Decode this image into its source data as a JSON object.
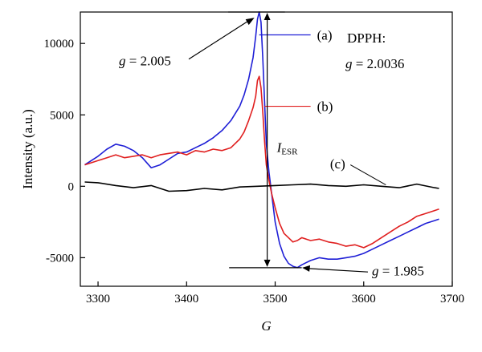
{
  "chart_data": {
    "type": "line",
    "xlabel": "G",
    "ylabel": "Intensity (a.u.)",
    "xlim": [
      3280,
      3700
    ],
    "ylim": [
      -7000,
      12200
    ],
    "xticks": [
      3300,
      3400,
      3500,
      3600,
      3700
    ],
    "yticks": [
      -5000,
      0,
      5000,
      10000
    ],
    "grid": false,
    "series": [
      {
        "name": "(a)",
        "color": "#1f1fd6",
        "x": [
          3285,
          3300,
          3310,
          3320,
          3330,
          3340,
          3350,
          3360,
          3370,
          3380,
          3390,
          3400,
          3410,
          3420,
          3430,
          3440,
          3450,
          3460,
          3465,
          3470,
          3475,
          3478,
          3480,
          3482,
          3484,
          3486,
          3488,
          3490,
          3493,
          3496,
          3500,
          3505,
          3510,
          3515,
          3520,
          3525,
          3530,
          3540,
          3550,
          3560,
          3570,
          3580,
          3590,
          3600,
          3610,
          3620,
          3630,
          3640,
          3650,
          3660,
          3670,
          3680,
          3685
        ],
        "y": [
          1500,
          2100,
          2600,
          2950,
          2800,
          2500,
          2000,
          1300,
          1500,
          1900,
          2300,
          2400,
          2700,
          3000,
          3400,
          3900,
          4600,
          5600,
          6400,
          7500,
          9000,
          10500,
          11700,
          12200,
          11500,
          9000,
          6000,
          3000,
          1000,
          -500,
          -2500,
          -4000,
          -4900,
          -5400,
          -5600,
          -5700,
          -5500,
          -5200,
          -5000,
          -5100,
          -5100,
          -5000,
          -4900,
          -4700,
          -4400,
          -4100,
          -3800,
          -3500,
          -3200,
          -2900,
          -2600,
          -2400,
          -2300
        ]
      },
      {
        "name": "(b)",
        "color": "#e01f1f",
        "x": [
          3285,
          3300,
          3310,
          3320,
          3330,
          3340,
          3350,
          3360,
          3370,
          3380,
          3390,
          3400,
          3410,
          3420,
          3430,
          3440,
          3450,
          3460,
          3465,
          3470,
          3475,
          3478,
          3480,
          3482,
          3484,
          3486,
          3488,
          3490,
          3493,
          3496,
          3500,
          3505,
          3510,
          3515,
          3520,
          3525,
          3530,
          3540,
          3550,
          3560,
          3570,
          3580,
          3590,
          3600,
          3610,
          3620,
          3630,
          3640,
          3650,
          3660,
          3670,
          3680,
          3685
        ],
        "y": [
          1500,
          1800,
          2000,
          2200,
          2000,
          2100,
          2200,
          2000,
          2200,
          2300,
          2400,
          2200,
          2500,
          2400,
          2600,
          2500,
          2700,
          3300,
          3800,
          4600,
          5500,
          6300,
          7400,
          7700,
          6900,
          5200,
          3200,
          1500,
          400,
          -500,
          -1500,
          -2600,
          -3300,
          -3600,
          -3900,
          -3800,
          -3600,
          -3800,
          -3700,
          -3900,
          -4000,
          -4200,
          -4100,
          -4300,
          -4000,
          -3600,
          -3200,
          -2800,
          -2500,
          -2100,
          -1900,
          -1700,
          -1600
        ]
      },
      {
        "name": "(c)",
        "color": "#000000",
        "x": [
          3285,
          3300,
          3320,
          3340,
          3360,
          3380,
          3400,
          3420,
          3440,
          3460,
          3480,
          3500,
          3520,
          3540,
          3560,
          3580,
          3600,
          3620,
          3640,
          3660,
          3680,
          3685
        ],
        "y": [
          300,
          250,
          50,
          -100,
          50,
          -350,
          -300,
          -150,
          -250,
          -50,
          0,
          50,
          100,
          150,
          50,
          0,
          100,
          0,
          -100,
          150,
          -100,
          -150
        ]
      }
    ],
    "annotations": {
      "label_a": "(a)",
      "label_b": "(b)",
      "label_c": "(c)",
      "g_peak": "g = 2.005",
      "g_trough": "g = 1.985",
      "dpph_title": "DPPH:",
      "dpph_value": "g = 2.0036",
      "i_esr": "IESR"
    }
  }
}
